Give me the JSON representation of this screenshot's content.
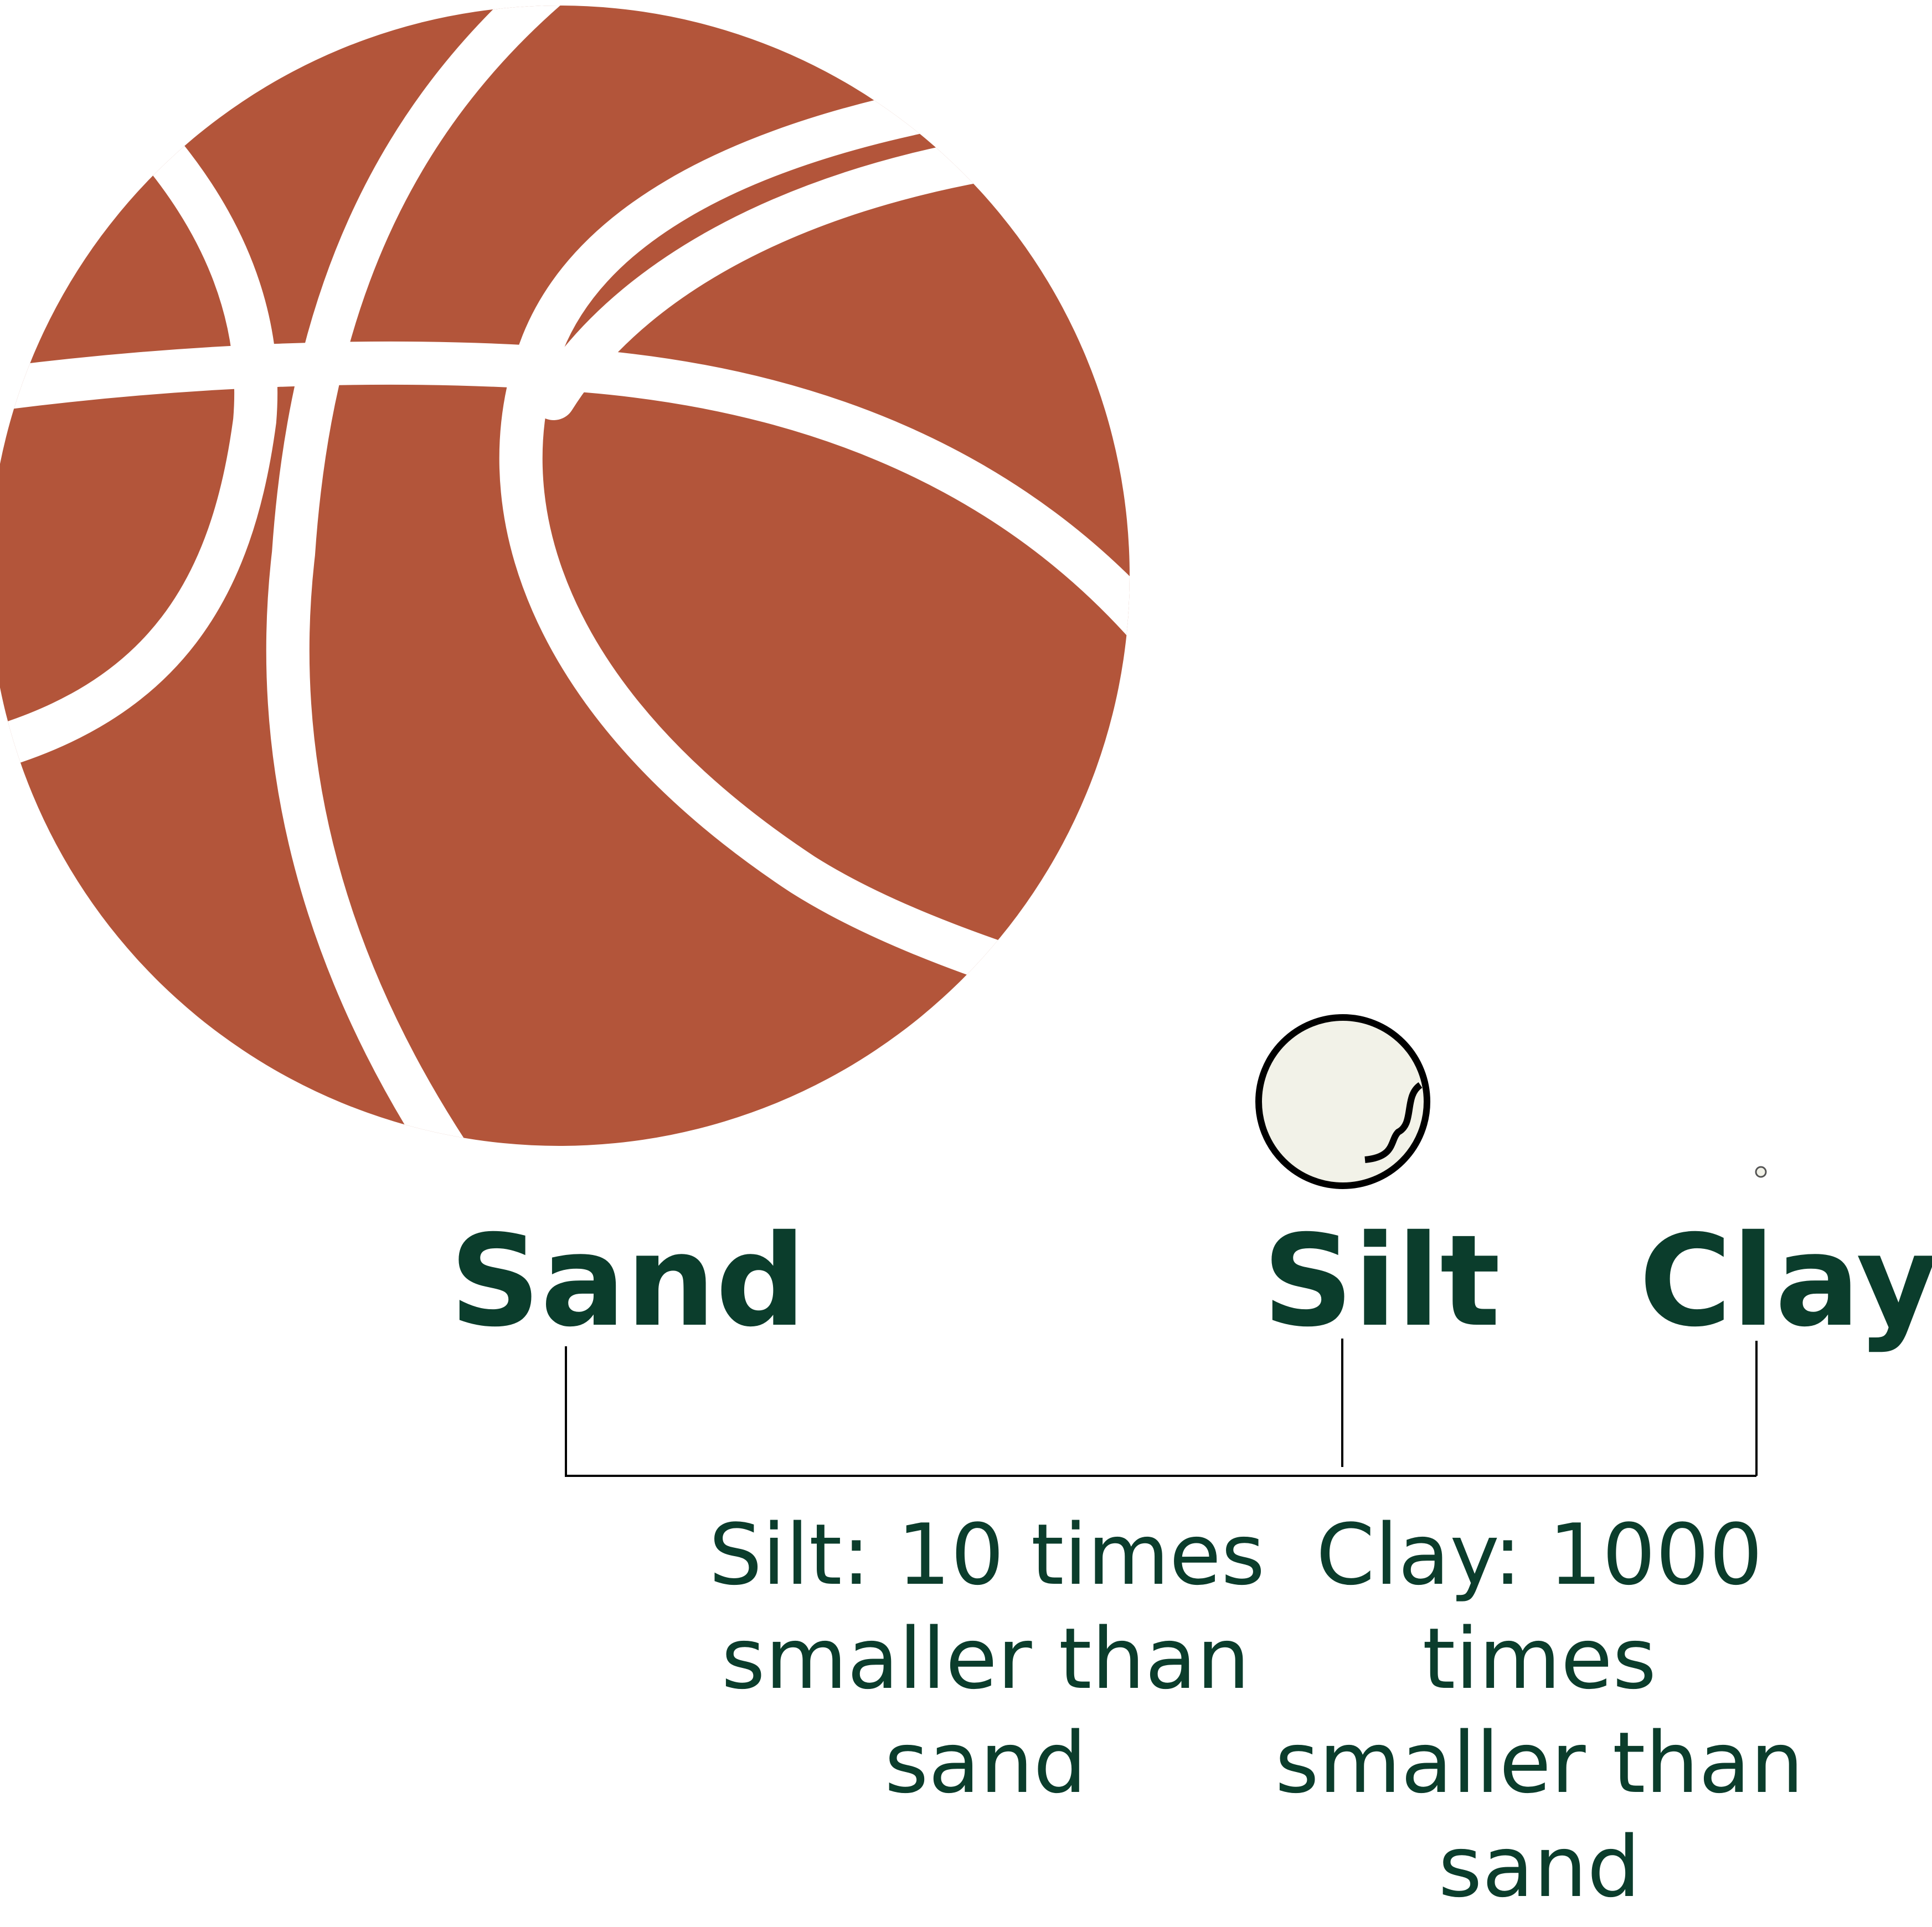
{
  "labels": {
    "sand": "Sand",
    "silt": "Silt",
    "clay": "Clay"
  },
  "captions": {
    "silt": [
      "Silt: 10 times",
      "smaller than",
      "sand"
    ],
    "clay": [
      "Clay: 1000",
      "times",
      "smaller than",
      "sand"
    ]
  },
  "icons": {
    "sand": "basketball-icon",
    "silt": "small-ball-icon",
    "clay": "tiny-dot-icon"
  },
  "colors": {
    "sand_ball": "#b3553a",
    "silt_ball": "#f2f2e8",
    "text": "#0b3d2c",
    "lines": "#000000"
  }
}
